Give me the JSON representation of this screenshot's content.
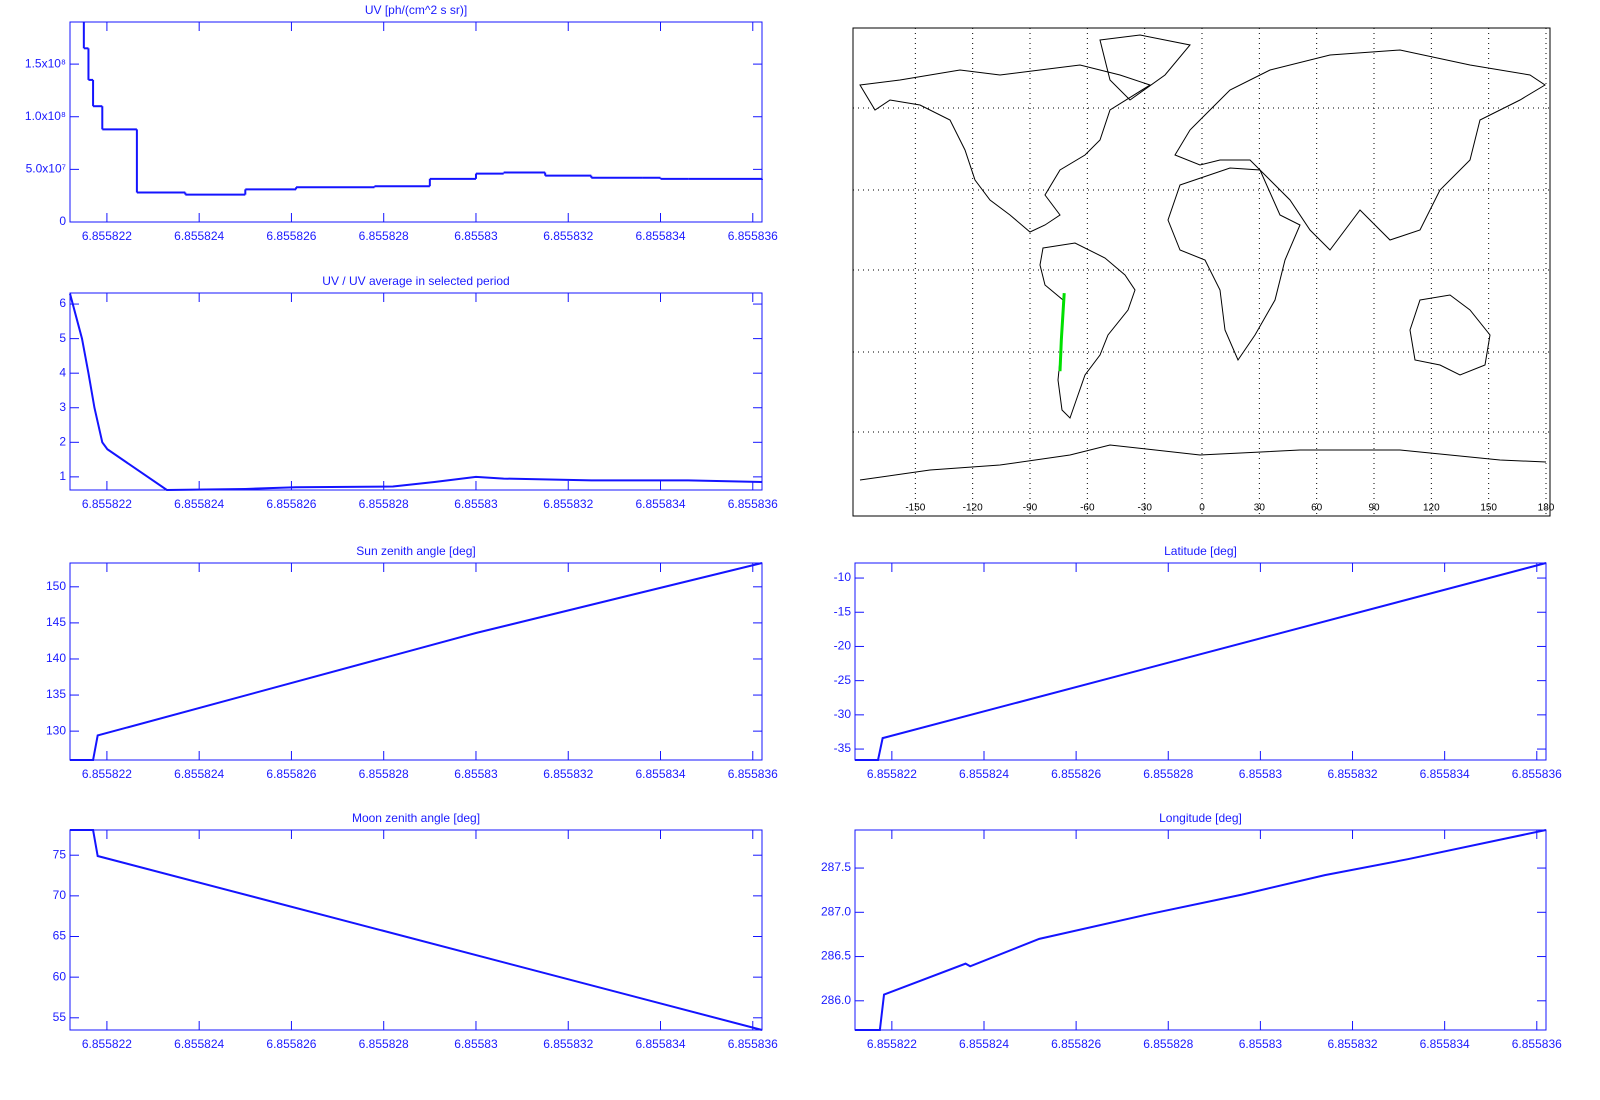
{
  "chart_data": [
    {
      "type": "line",
      "title": "UV [ph/(cm^2 s sr)]",
      "step": true,
      "color": "#1414ff",
      "xlim": [
        6.8558212,
        6.8558362
      ],
      "xticks": [
        6.855822,
        6.855824,
        6.855826,
        6.855828,
        6.85583,
        6.855832,
        6.855834,
        6.855836
      ],
      "ylim": [
        0,
        190000000
      ],
      "yticks": [
        0,
        {
          "value": 50000000,
          "label": "5.0x10⁷"
        },
        {
          "value": 100000000,
          "label": "1.0x10⁸"
        },
        {
          "value": 150000000,
          "label": "1.5x10⁸"
        }
      ],
      "x": [
        6.8558215,
        6.8558216,
        6.8558217,
        6.8558219,
        6.85582265,
        6.8558237,
        6.855825,
        6.8558261,
        6.8558278,
        6.855829,
        6.85583,
        6.8558306,
        6.8558315,
        6.8558325,
        6.8558336,
        6.855834,
        6.8558346,
        6.8558362
      ],
      "values": [
        165000000,
        135000000,
        110000000,
        88000000,
        28000000,
        26000000,
        31000000,
        33000000,
        34000000,
        41000000,
        46000000,
        47000000,
        44000000,
        42000000,
        42000000,
        41000000,
        41000000,
        40000000
      ]
    },
    {
      "type": "line",
      "title": "UV / UV average in selected period",
      "color": "#1414ff",
      "xlim": [
        6.8558212,
        6.8558362
      ],
      "xticks": [
        6.855822,
        6.855824,
        6.855826,
        6.855828,
        6.85583,
        6.855832,
        6.855834,
        6.855836
      ],
      "ylim": [
        0.62,
        6.32
      ],
      "yticks": [
        1,
        2,
        3,
        4,
        5,
        6
      ],
      "x": [
        6.8558212,
        6.85582146,
        6.8558216,
        6.85582173,
        6.8558219,
        6.85582201,
        6.8558233,
        6.855825,
        6.8558261,
        6.8558282,
        6.8558291,
        6.85583,
        6.8558306,
        6.8558325,
        6.8558346,
        6.8558362
      ],
      "values": [
        6.3,
        5,
        4,
        3,
        2,
        1.8,
        0.62,
        0.65,
        0.7,
        0.72,
        0.85,
        1,
        0.95,
        0.9,
        0.9,
        0.85
      ]
    },
    {
      "type": "line",
      "title": "Sun zenith angle [deg]",
      "color": "#1414ff",
      "xlim": [
        6.8558212,
        6.8558362
      ],
      "xticks": [
        6.855822,
        6.855824,
        6.855826,
        6.855828,
        6.85583,
        6.855832,
        6.855834,
        6.855836
      ],
      "ylim": [
        126,
        153.3
      ],
      "yticks": [
        130,
        135,
        140,
        145,
        150
      ],
      "x": [
        6.8558212,
        6.8558217,
        6.8558218,
        6.85583,
        6.8558362
      ],
      "values": [
        126,
        126,
        129.4,
        143.6,
        153.3
      ]
    },
    {
      "type": "line",
      "title": "Latitude [deg]",
      "color": "#1414ff",
      "xlim": [
        6.8558212,
        6.8558362
      ],
      "xticks": [
        6.855822,
        6.855824,
        6.855826,
        6.855828,
        6.85583,
        6.855832,
        6.855834,
        6.855836
      ],
      "ylim": [
        -36.6,
        -7.8
      ],
      "yticks": [
        -35,
        -30,
        -25,
        -20,
        -15,
        -10
      ],
      "x": [
        6.8558212,
        6.8558217,
        6.8558218,
        6.8558362
      ],
      "values": [
        -36.6,
        -36.6,
        -33.4,
        -7.8
      ]
    },
    {
      "type": "line",
      "title": "Moon zenith angle [deg]",
      "color": "#1414ff",
      "xlim": [
        6.8558212,
        6.8558362
      ],
      "xticks": [
        6.855822,
        6.855824,
        6.855826,
        6.855828,
        6.85583,
        6.855832,
        6.855834,
        6.855836
      ],
      "ylim": [
        53.5,
        78.1
      ],
      "yticks": [
        55,
        60,
        65,
        70,
        75
      ],
      "x": [
        6.8558212,
        6.8558217,
        6.8558218,
        6.8558362
      ],
      "values": [
        78.1,
        78.1,
        74.9,
        53.5
      ]
    },
    {
      "type": "line",
      "title": "Longitude [deg]",
      "color": "#1414ff",
      "xlim": [
        6.8558212,
        6.8558362
      ],
      "xticks": [
        6.855822,
        6.855824,
        6.855826,
        6.855828,
        6.85583,
        6.855832,
        6.855834,
        6.855836
      ],
      "ylim": [
        285.67,
        287.93
      ],
      "yticks": [
        {
          "value": 286,
          "label": "286.0"
        },
        286.5,
        {
          "value": 287,
          "label": "287.0"
        },
        287.5
      ],
      "x": [
        6.8558212,
        6.85582174,
        6.85582183,
        6.8558236,
        6.8558237,
        6.8558252,
        6.8558275,
        6.8558296,
        6.8558314,
        6.8558332,
        6.8558362
      ],
      "values": [
        285.67,
        285.67,
        286.07,
        286.42,
        286.39,
        286.7,
        286.97,
        287.2,
        287.42,
        287.6,
        287.93
      ]
    },
    {
      "type": "map",
      "color": "#00e000",
      "grid": true,
      "xlim": [
        -180,
        180
      ],
      "xticks": [
        -150,
        -120,
        -90,
        -60,
        -30,
        0,
        30,
        60,
        90,
        120,
        150,
        180
      ],
      "ylim": [
        -90,
        90
      ],
      "x": [
        -74.3,
        -73.6,
        -72.1
      ],
      "values": [
        -36.6,
        -25,
        -7.8
      ]
    }
  ]
}
